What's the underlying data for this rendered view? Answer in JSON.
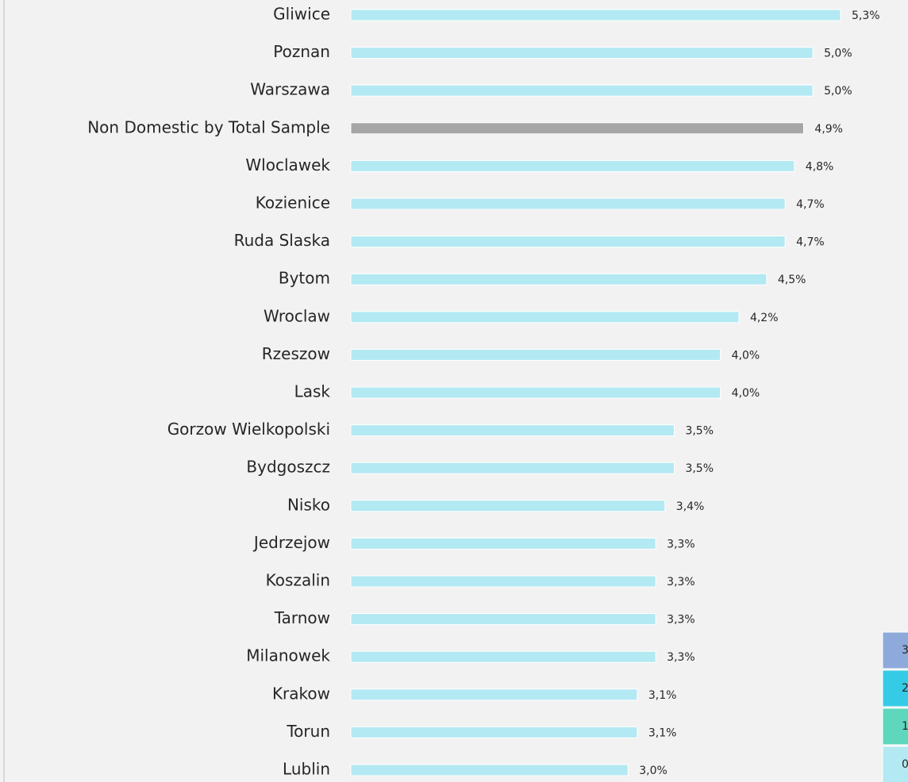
{
  "chart_data": {
    "type": "hbar",
    "categories": [
      "Gliwice",
      "Poznan",
      "Warszawa",
      "Non Domestic by Total Sample",
      "Wloclawek",
      "Kozienice",
      "Ruda Slaska",
      "Bytom",
      "Wroclaw",
      "Rzeszow",
      "Lask",
      "Gorzow Wielkopolski",
      "Bydgoszcz",
      "Nisko",
      "Jedrzejow",
      "Koszalin",
      "Tarnow",
      "Milanowek",
      "Krakow",
      "Torun",
      "Lublin"
    ],
    "values": [
      5.3,
      5.0,
      5.0,
      4.9,
      4.8,
      4.7,
      4.7,
      4.5,
      4.2,
      4.0,
      4.0,
      3.5,
      3.5,
      3.4,
      3.3,
      3.3,
      3.3,
      3.3,
      3.1,
      3.1,
      3.0
    ],
    "value_labels": [
      "5,3%",
      "5,0%",
      "5,0%",
      "4,9%",
      "4,8%",
      "4,7%",
      "4,7%",
      "4,5%",
      "4,2%",
      "4,0%",
      "4,0%",
      "3,5%",
      "3,5%",
      "3,4%",
      "3,3%",
      "3,3%",
      "3,3%",
      "3,3%",
      "3,1%",
      "3,1%",
      "3,0%"
    ],
    "colors": [
      "#b3e9f2",
      "#b3e9f2",
      "#b3e9f2",
      "#a6a6a6",
      "#b3e9f2",
      "#b3e9f2",
      "#b3e9f2",
      "#b3e9f2",
      "#b3e9f2",
      "#b3e9f2",
      "#b3e9f2",
      "#b3e9f2",
      "#b3e9f2",
      "#b3e9f2",
      "#b3e9f2",
      "#b3e9f2",
      "#b3e9f2",
      "#b3e9f2",
      "#b3e9f2",
      "#b3e9f2",
      "#b3e9f2"
    ],
    "legend": [
      {
        "label": "3",
        "color": "#8eaadb"
      },
      {
        "label": "2",
        "color": "#35cbe6"
      },
      {
        "label": "1",
        "color": "#5fd7bd"
      },
      {
        "label": "0",
        "color": "#b3e9f2"
      }
    ]
  }
}
